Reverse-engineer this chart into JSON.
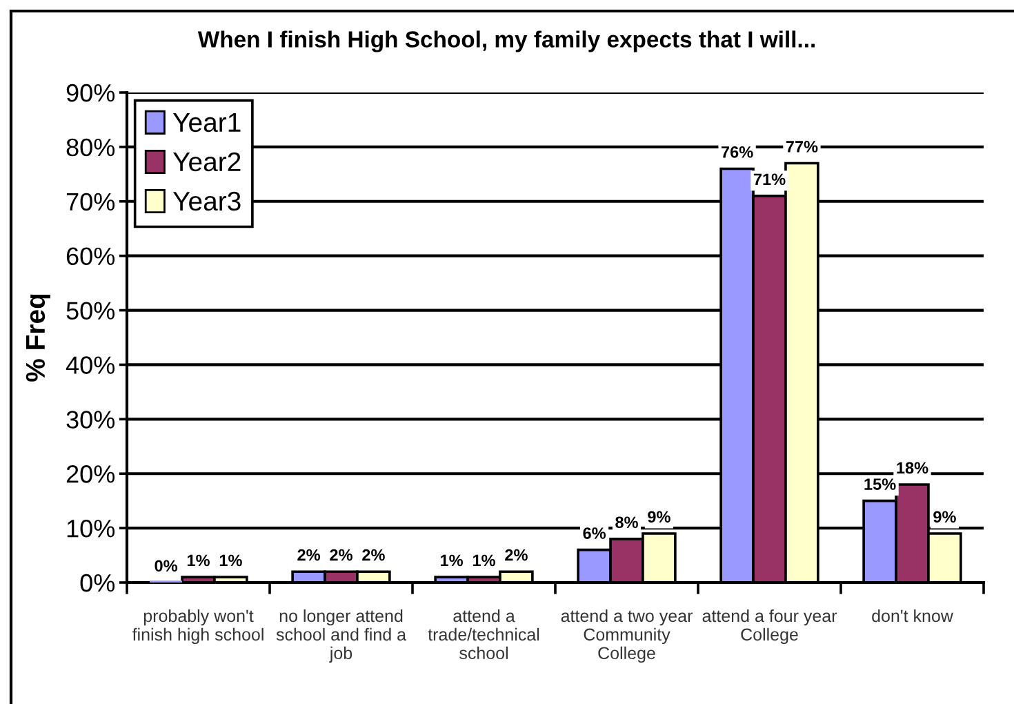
{
  "chart_data": {
    "type": "bar",
    "title": "When I finish High School, my family expects that I will...",
    "ylabel": "% Freq",
    "categories": [
      "probably won't\nfinish high school",
      "no longer attend\nschool and find a\njob",
      "attend a\ntrade/technical\nschool",
      "attend a two year\nCommunity\nCollege",
      "attend a four year\nCollege",
      "don't know"
    ],
    "series": [
      {
        "name": "Year1",
        "color": "#9999ff",
        "values": [
          0,
          2,
          1,
          6,
          76,
          15
        ],
        "value_labels": [
          "0%",
          "2%",
          "1%",
          "6%",
          "76%",
          "15%"
        ]
      },
      {
        "name": "Year2",
        "color": "#993366",
        "values": [
          1,
          2,
          1,
          8,
          71,
          18
        ],
        "value_labels": [
          "1%",
          "2%",
          "1%",
          "8%",
          "71%",
          "18%"
        ]
      },
      {
        "name": "Year3",
        "color": "#ffffcc",
        "values": [
          1,
          2,
          2,
          9,
          77,
          9
        ],
        "value_labels": [
          "1%",
          "2%",
          "2%",
          "9%",
          "77%",
          "9%"
        ]
      }
    ],
    "ylim": [
      0,
      90
    ],
    "yticks": [
      {
        "value": 0,
        "label": "0%"
      },
      {
        "value": 10,
        "label": "10%"
      },
      {
        "value": 20,
        "label": "20%"
      },
      {
        "value": 30,
        "label": "30%"
      },
      {
        "value": 40,
        "label": "40%"
      },
      {
        "value": 50,
        "label": "50%"
      },
      {
        "value": 60,
        "label": "60%"
      },
      {
        "value": 70,
        "label": "70%"
      },
      {
        "value": 80,
        "label": "80%"
      },
      {
        "value": 90,
        "label": "90%"
      }
    ],
    "grid": "y",
    "legend": "top left"
  }
}
